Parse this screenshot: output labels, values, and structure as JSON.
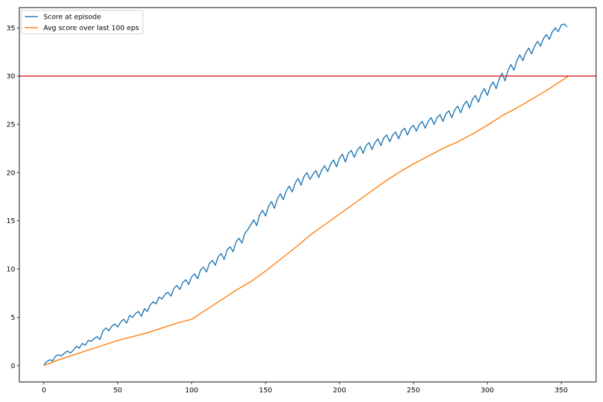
{
  "chart_data": {
    "type": "line",
    "grid": false,
    "legend_location": "upper left",
    "xlim": [
      -16.6,
      373.6
    ],
    "ylim": [
      -1.7,
      37.1
    ],
    "x_ticks": [
      0,
      50,
      100,
      150,
      200,
      250,
      300,
      350
    ],
    "x_tick_labels": [
      "0",
      "50",
      "100",
      "150",
      "200",
      "250",
      "300",
      "350"
    ],
    "y_ticks": [
      0,
      5,
      10,
      15,
      20,
      25,
      30,
      35
    ],
    "y_tick_labels": [
      "0",
      "5",
      "10",
      "15",
      "20",
      "25",
      "30",
      "35"
    ],
    "series": [
      {
        "name": "Score at episode",
        "color": "#1f77b4",
        "x": [
          0,
          2,
          4,
          6,
          8,
          10,
          12,
          14,
          16,
          18,
          20,
          22,
          24,
          26,
          28,
          30,
          32,
          34,
          36,
          38,
          40,
          42,
          44,
          46,
          48,
          50,
          52,
          54,
          56,
          58,
          60,
          62,
          64,
          66,
          68,
          70,
          72,
          74,
          76,
          78,
          80,
          82,
          84,
          86,
          88,
          90,
          92,
          94,
          96,
          98,
          100,
          102,
          104,
          106,
          108,
          110,
          112,
          114,
          116,
          118,
          120,
          122,
          124,
          126,
          128,
          130,
          132,
          134,
          136,
          138,
          140,
          142,
          144,
          146,
          148,
          150,
          152,
          154,
          156,
          158,
          160,
          162,
          164,
          166,
          168,
          170,
          172,
          174,
          176,
          178,
          180,
          182,
          184,
          186,
          188,
          190,
          192,
          194,
          196,
          198,
          200,
          202,
          204,
          206,
          208,
          210,
          212,
          214,
          216,
          218,
          220,
          222,
          224,
          226,
          228,
          230,
          232,
          234,
          236,
          238,
          240,
          242,
          244,
          246,
          248,
          250,
          252,
          254,
          256,
          258,
          260,
          262,
          264,
          266,
          268,
          270,
          272,
          274,
          276,
          278,
          280,
          282,
          284,
          286,
          288,
          290,
          292,
          294,
          296,
          298,
          300,
          302,
          304,
          306,
          308,
          310,
          312,
          314,
          316,
          318,
          320,
          322,
          324,
          326,
          328,
          330,
          332,
          334,
          336,
          338,
          340,
          342,
          344,
          346,
          348,
          350,
          352,
          354
        ],
        "y": [
          0.1,
          0.4,
          0.6,
          0.5,
          1.0,
          1.1,
          1.0,
          1.3,
          1.5,
          1.3,
          1.6,
          2.0,
          1.8,
          2.3,
          2.1,
          2.6,
          2.5,
          2.8,
          3.0,
          2.7,
          3.6,
          3.9,
          3.6,
          4.1,
          4.3,
          4.0,
          4.5,
          4.8,
          4.4,
          5.2,
          5.0,
          5.4,
          5.6,
          5.1,
          5.9,
          5.6,
          6.3,
          6.6,
          6.4,
          7.1,
          6.9,
          7.4,
          7.6,
          7.2,
          8.0,
          8.3,
          7.9,
          8.6,
          8.9,
          8.4,
          9.2,
          9.5,
          9.0,
          9.9,
          10.2,
          9.7,
          10.6,
          10.9,
          10.4,
          11.3,
          11.6,
          11.0,
          12.0,
          12.3,
          11.8,
          12.8,
          13.2,
          12.7,
          13.7,
          14.1,
          14.6,
          15.1,
          14.5,
          15.6,
          16.1,
          15.5,
          16.5,
          17.0,
          16.3,
          17.3,
          17.8,
          17.2,
          18.1,
          18.6,
          18.0,
          18.9,
          19.4,
          18.7,
          19.6,
          20.0,
          19.3,
          19.8,
          20.2,
          19.5,
          20.3,
          20.7,
          20.1,
          20.9,
          21.3,
          20.6,
          21.5,
          21.9,
          21.1,
          22.0,
          22.3,
          21.6,
          22.3,
          22.7,
          22.0,
          22.8,
          23.1,
          22.4,
          23.1,
          23.5,
          22.8,
          23.6,
          23.9,
          23.2,
          23.9,
          24.2,
          23.5,
          24.3,
          24.6,
          23.9,
          24.6,
          24.9,
          24.3,
          25.0,
          25.3,
          24.6,
          25.3,
          25.7,
          25.0,
          25.7,
          26.0,
          25.3,
          26.1,
          26.4,
          25.7,
          26.5,
          26.9,
          26.2,
          27.0,
          27.4,
          26.7,
          27.6,
          28.0,
          27.3,
          28.2,
          28.7,
          28.0,
          28.9,
          29.4,
          28.7,
          29.7,
          30.3,
          29.5,
          30.6,
          31.2,
          30.6,
          31.6,
          32.2,
          31.6,
          32.4,
          32.9,
          32.3,
          33.1,
          33.6,
          33.1,
          33.9,
          34.3,
          33.8,
          34.6,
          35.0,
          34.6,
          35.3,
          35.4,
          35.1
        ]
      },
      {
        "name": "Avg score over last 100 eps",
        "color": "#ff7f0e",
        "x": [
          0,
          10,
          20,
          30,
          40,
          50,
          60,
          70,
          80,
          90,
          100,
          110,
          120,
          130,
          140,
          150,
          160,
          170,
          180,
          190,
          200,
          210,
          220,
          230,
          240,
          250,
          260,
          270,
          280,
          290,
          300,
          310,
          320,
          330,
          340,
          350,
          355
        ],
        "y": [
          0.0,
          0.6,
          1.1,
          1.6,
          2.1,
          2.6,
          3.0,
          3.4,
          3.9,
          4.4,
          4.8,
          5.8,
          6.8,
          7.8,
          8.7,
          9.8,
          11.0,
          12.2,
          13.5,
          14.6,
          15.7,
          16.8,
          17.9,
          19.0,
          20.0,
          20.9,
          21.7,
          22.5,
          23.2,
          24.0,
          24.9,
          25.9,
          26.7,
          27.6,
          28.5,
          29.5,
          30.0
        ]
      },
      {
        "name": "",
        "color": "#e02020",
        "y_constant": 30
      }
    ]
  }
}
